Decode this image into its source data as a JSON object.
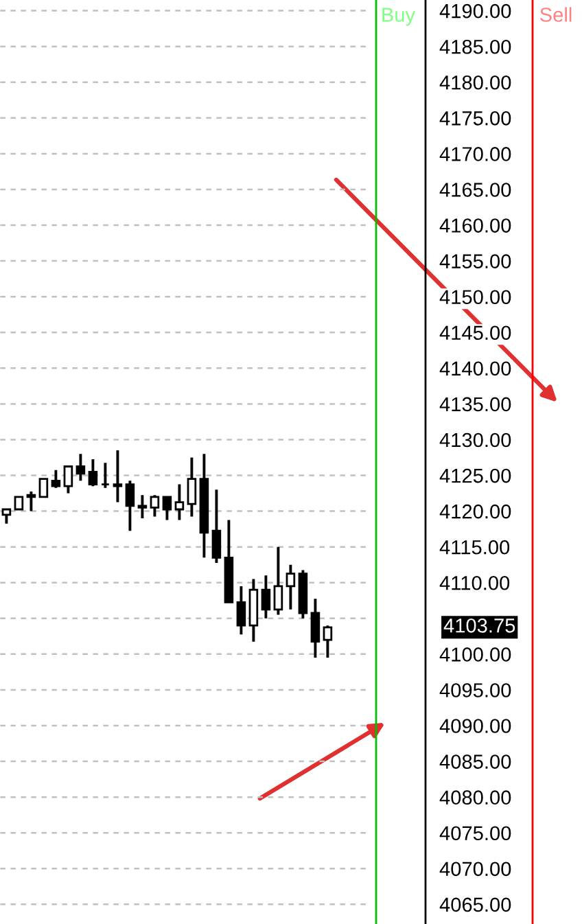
{
  "chart_data": {
    "type": "candlestick",
    "categories": [
      null,
      null,
      null,
      null,
      null,
      null,
      null,
      null,
      null,
      null,
      null,
      null,
      null,
      null,
      null,
      null,
      null,
      null,
      null,
      null,
      null,
      null,
      null,
      null,
      null,
      null,
      null
    ],
    "ohlc": [
      [
        4119.5,
        4120.25,
        4118.25,
        4120.25
      ],
      [
        4120.25,
        4122,
        4120.25,
        4122
      ],
      [
        4122,
        4122.75,
        4120,
        4122.25
      ],
      [
        4122,
        4124.5,
        4122,
        4124.5
      ],
      [
        4124.25,
        4125.75,
        4123.25,
        4123.5
      ],
      [
        4123.5,
        4126.25,
        4122.5,
        4126.25
      ],
      [
        4126.25,
        4128,
        4124.25,
        4125.25
      ],
      [
        4125.5,
        4127.25,
        4123.5,
        4123.75
      ],
      [
        4123.75,
        4126.75,
        4123.25,
        4123.75
      ],
      [
        4123.75,
        4128.5,
        4121.25,
        4123.5
      ],
      [
        4123.75,
        4124.25,
        4117.25,
        4120.75
      ],
      [
        4120.75,
        4122.25,
        4119,
        4120.5
      ],
      [
        4120.5,
        4122.25,
        4119.25,
        4122
      ],
      [
        4122,
        4122,
        4118.75,
        4120.25
      ],
      [
        4120.25,
        4123.75,
        4118.75,
        4121.25
      ],
      [
        4121,
        4127.5,
        4119.25,
        4124.5
      ],
      [
        4124.5,
        4128,
        4113.5,
        4117
      ],
      [
        4117.25,
        4123,
        4112.75,
        4113.5
      ],
      [
        4113.5,
        4118.75,
        4107.25,
        4107.25
      ],
      [
        4107.25,
        4109.5,
        4102.75,
        4104
      ],
      [
        4104,
        4110.5,
        4101.75,
        4109
      ],
      [
        4109,
        4111,
        4105,
        4106.25
      ],
      [
        4106.25,
        4115,
        4105.5,
        4109.5
      ],
      [
        4109.5,
        4112.5,
        4106.25,
        4111.25
      ],
      [
        4111.25,
        4111.75,
        4105,
        4105.75
      ],
      [
        4105.75,
        4107.75,
        4099.5,
        4101.75
      ],
      [
        4102,
        4104,
        4099.5,
        4103.75
      ]
    ],
    "ylim": [
      4062.25,
      4191.5
    ],
    "yticks": [
      {
        "value": 4065,
        "label": "4065.00"
      },
      {
        "value": 4070,
        "label": "4070.00"
      },
      {
        "value": 4075,
        "label": "4075.00"
      },
      {
        "value": 4080,
        "label": "4080.00"
      },
      {
        "value": 4085,
        "label": "4085.00"
      },
      {
        "value": 4090,
        "label": "4090.00"
      },
      {
        "value": 4095,
        "label": "4095.00"
      },
      {
        "value": 4100,
        "label": "4100.00"
      },
      {
        "value": 4105,
        "label": null
      },
      {
        "value": 4110,
        "label": "4110.00"
      },
      {
        "value": 4115,
        "label": "4115.00"
      },
      {
        "value": 4120,
        "label": "4120.00"
      },
      {
        "value": 4125,
        "label": "4125.00"
      },
      {
        "value": 4130,
        "label": "4130.00"
      },
      {
        "value": 4135,
        "label": "4135.00"
      },
      {
        "value": 4140,
        "label": "4140.00"
      },
      {
        "value": 4145,
        "label": "4145.00"
      },
      {
        "value": 4150,
        "label": "4150.00"
      },
      {
        "value": 4155,
        "label": "4155.00"
      },
      {
        "value": 4160,
        "label": "4160.00"
      },
      {
        "value": 4165,
        "label": "4165.00"
      },
      {
        "value": 4170,
        "label": "4170.00"
      },
      {
        "value": 4175,
        "label": "4175.00"
      },
      {
        "value": 4180,
        "label": "4180.00"
      },
      {
        "value": 4185,
        "label": "4185.00"
      },
      {
        "value": 4190,
        "label": "4190.00"
      }
    ],
    "grid": "y",
    "tick_labels": "y",
    "annotations": [
      "4103.75",
      "Buy",
      "Sell"
    ]
  }
}
